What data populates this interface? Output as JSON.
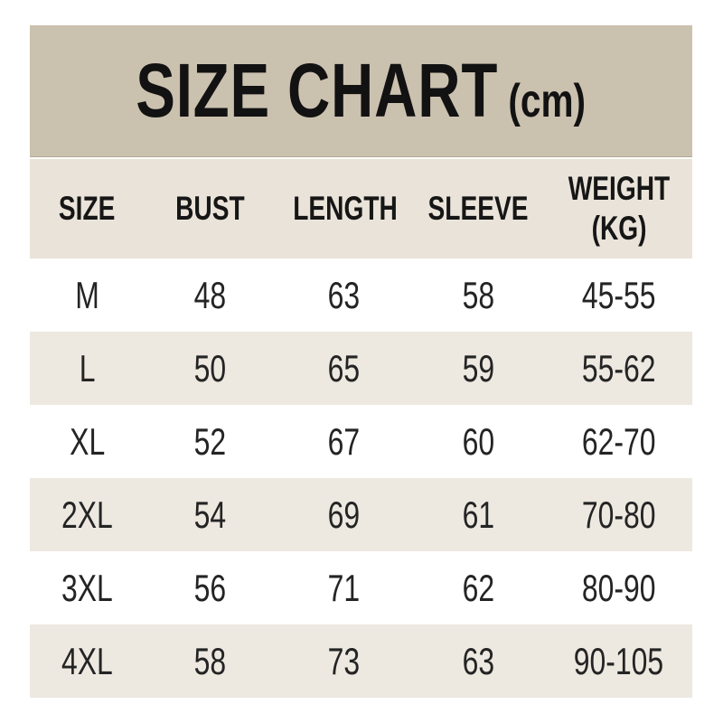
{
  "title": {
    "main": "SIZE CHART",
    "unit": "(cm)"
  },
  "colors": {
    "title_band": "#cbc1af",
    "header_band": "#eae3d9",
    "row_alt": "#ede8e0",
    "row_plain": "#ffffff",
    "text": "#1a1a1a",
    "page_background": "#ffffff"
  },
  "table": {
    "headers": [
      {
        "label": "SIZE"
      },
      {
        "label": "BUST"
      },
      {
        "label": "LENGTH"
      },
      {
        "label": "SLEEVE"
      },
      {
        "label": "WEIGHT",
        "sub": "(KG)"
      }
    ],
    "rows": [
      {
        "size": "M",
        "bust": "48",
        "length": "63",
        "sleeve": "58",
        "weight": "45-55"
      },
      {
        "size": "L",
        "bust": "50",
        "length": "65",
        "sleeve": "59",
        "weight": "55-62"
      },
      {
        "size": "XL",
        "bust": "52",
        "length": "67",
        "sleeve": "60",
        "weight": "62-70"
      },
      {
        "size": "2XL",
        "bust": "54",
        "length": "69",
        "sleeve": "61",
        "weight": "70-80"
      },
      {
        "size": "3XL",
        "bust": "56",
        "length": "71",
        "sleeve": "62",
        "weight": "80-90"
      },
      {
        "size": "4XL",
        "bust": "58",
        "length": "73",
        "sleeve": "63",
        "weight": "90-105"
      }
    ]
  },
  "chart_data": {
    "type": "table",
    "title": "SIZE CHART (cm)",
    "measurement_unit": "cm",
    "weight_unit": "KG",
    "columns": [
      "SIZE",
      "BUST",
      "LENGTH",
      "SLEEVE",
      "WEIGHT (KG)"
    ],
    "rows": [
      [
        "M",
        48,
        63,
        58,
        "45-55"
      ],
      [
        "L",
        50,
        65,
        59,
        "55-62"
      ],
      [
        "XL",
        52,
        67,
        60,
        "62-70"
      ],
      [
        "2XL",
        54,
        69,
        61,
        "70-80"
      ],
      [
        "3XL",
        56,
        71,
        62,
        "80-90"
      ],
      [
        "4XL",
        58,
        73,
        63,
        "90-105"
      ]
    ]
  }
}
